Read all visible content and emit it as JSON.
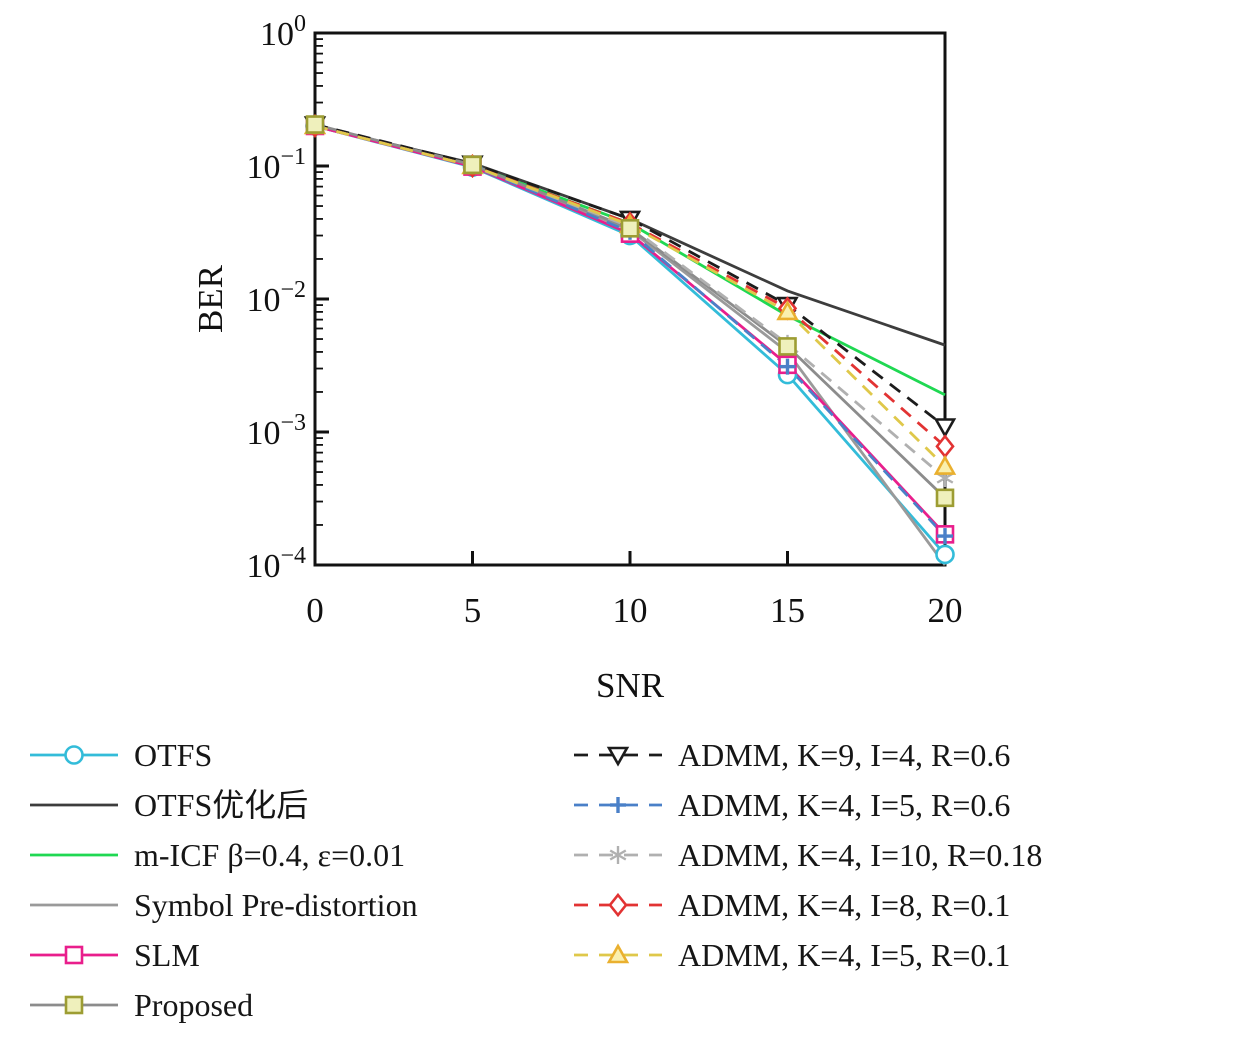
{
  "chart_data": {
    "type": "line",
    "title": "",
    "xlabel": "SNR",
    "ylabel": "BER",
    "grid": false,
    "legend_position": "below-two-columns",
    "legend_columns": [
      6,
      5
    ],
    "x": [
      0,
      5,
      10,
      15,
      20
    ],
    "xlim": [
      0,
      20
    ],
    "x_ticks": [
      0,
      5,
      10,
      15,
      20
    ],
    "y_scale": "log",
    "ylim": [
      0.0001,
      1
    ],
    "y_tick_exponents": [
      0,
      -1,
      -2,
      -3,
      -4
    ],
    "series": [
      {
        "name": "OTFS",
        "color": "#33bcd9",
        "line": "solid",
        "marker": "circle",
        "values": [
          0.2,
          0.098,
          0.03,
          0.0027,
          0.00012
        ]
      },
      {
        "name": "OTFS优化后",
        "color": "#3d3d3d",
        "line": "solid",
        "marker": "none",
        "values": [
          0.2,
          0.105,
          0.04,
          0.0115,
          0.0045
        ]
      },
      {
        "name": "m-ICF β=0.4, ε=0.01",
        "color": "#1fd852",
        "line": "solid",
        "marker": "none",
        "values": [
          0.2,
          0.101,
          0.037,
          0.0075,
          0.0019
        ]
      },
      {
        "name": "Symbol Pre-distortion",
        "color": "#9a9a9a",
        "line": "solid",
        "marker": "none",
        "values": [
          0.2,
          0.1,
          0.033,
          0.004,
          0.0001
        ]
      },
      {
        "name": "SLM",
        "color": "#e91e8c",
        "line": "solid",
        "marker": "square",
        "values": [
          0.2,
          0.099,
          0.031,
          0.0032,
          0.00017
        ]
      },
      {
        "name": "Proposed",
        "color": "#8c8c8c",
        "line": "solid",
        "marker": "square",
        "marker_color": "#9d9d33",
        "marker_fill": "#eff0bc",
        "marker_front": true,
        "values": [
          0.205,
          0.102,
          0.034,
          0.0044,
          0.00032
        ]
      },
      {
        "name": "ADMM, K=9, I=4, R=0.6",
        "color": "#1c1c1c",
        "line": "dashed",
        "marker": "triangle-down",
        "values": [
          0.205,
          0.104,
          0.04,
          0.009,
          0.0011
        ]
      },
      {
        "name": "ADMM, K=4, I=5, R=0.6",
        "color": "#4a80c8",
        "line": "dashed",
        "marker": "plus",
        "values": [
          0.2,
          0.1,
          0.032,
          0.0031,
          0.000165
        ]
      },
      {
        "name": "ADMM, K=4, I=10, R=0.18",
        "color": "#b0b0b0",
        "line": "dashed",
        "marker": "star",
        "values": [
          0.2,
          0.1,
          0.035,
          0.0046,
          0.00045
        ]
      },
      {
        "name": "ADMM, K=4, I=8, R=0.1",
        "color": "#e23333",
        "line": "dashed",
        "marker": "diamond",
        "values": [
          0.2,
          0.1,
          0.037,
          0.0085,
          0.00078
        ]
      },
      {
        "name": "ADMM, K=4, I=5, R=0.1",
        "color": "#dfc84a",
        "line": "dashed",
        "marker": "triangle-up",
        "marker_color": "#eab02f",
        "marker_fill": "#faf0ae",
        "values": [
          0.2,
          0.1,
          0.036,
          0.008,
          0.00055
        ]
      }
    ]
  }
}
